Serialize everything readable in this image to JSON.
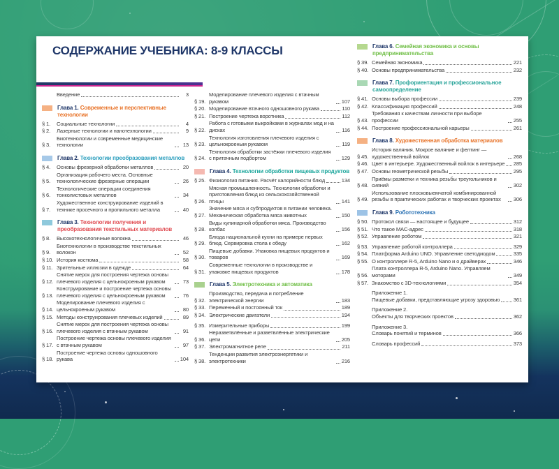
{
  "page": {
    "title": "СОДЕРЖАНИЕ УЧЕБНИКА: 8-9 КЛАССЫ"
  },
  "colors": {
    "title_navy": "#1E3668",
    "background_green": "#2F9E74",
    "background_navy": "#13305C",
    "divider_navy": "#203864",
    "divider_magenta": "#C9258F"
  },
  "columns": [
    {
      "blocks": [
        {
          "items": [
            {
              "num": "",
              "text": "Введение",
              "page": "3"
            }
          ]
        },
        {
          "chapter": {
            "label": "Глава 1.",
            "title": "Современные и перспективные технологии",
            "color": "#E8742A",
            "bullet": "#F5B183"
          },
          "items": [
            {
              "num": "§ 1.",
              "text": "Социальные технологии",
              "page": "4"
            },
            {
              "num": "§ 2.",
              "text": "Лазерные технологии и нанотехнологии",
              "page": "9"
            },
            {
              "num": "§ 3.",
              "text": "Биотехнологии и современные медицинские технологии",
              "page": "13"
            }
          ]
        },
        {
          "chapter": {
            "label": "Глава 2.",
            "title": "Технологии преобразования металлов",
            "color": "#2D9FBE",
            "bullet": "#A6C9E8"
          },
          "items": [
            {
              "num": "§ 4.",
              "text": "Основы фрезерной обработки металлов",
              "page": "20"
            },
            {
              "num": "§ 5.",
              "text": "Организация рабочего места. Основные технологические фрезерные операции",
              "page": "26"
            },
            {
              "num": "§ 6.",
              "text": "Технологические операции соединения тонколистовых металлов",
              "page": "34"
            },
            {
              "num": "§ 7.",
              "text": "Художественное конструирование изделий в технике просечного и пропильного металла",
              "page": "40"
            }
          ]
        },
        {
          "chapter": {
            "label": "Глава 3.",
            "title": "Технологии получения и преобразования текстильных материалов",
            "color": "#E04B51",
            "bullet": "#8FC9DC"
          },
          "items": [
            {
              "num": "§ 8.",
              "text": "Высокотехнологичные волокна",
              "page": "46"
            },
            {
              "num": "§ 9.",
              "text": "Биотехнологии в производстве текстильных волокон",
              "page": "52"
            },
            {
              "num": "§ 10.",
              "text": "История костюма",
              "page": "58"
            },
            {
              "num": "§ 11.",
              "text": "Зрительные иллюзии в одежде",
              "page": "64"
            },
            {
              "num": "§ 12.",
              "text": "Снятие мерок для построения чертежа основы плечевого изделия с цельнокроеным рукавом",
              "page": "73"
            },
            {
              "num": "§ 13.",
              "text": "Конструирование и построение чертежа основы плечевого изделия с цельнокроеным рукавом",
              "page": "76"
            },
            {
              "num": "§ 14.",
              "text": "Моделирование плечевого изделия с цельнокроеным рукавом",
              "page": "80"
            },
            {
              "num": "§ 15.",
              "text": "Методы конструирования плечевых изделий",
              "page": "89"
            },
            {
              "num": "§ 16.",
              "text": "Снятие мерок для построения чертежа основы плечевого изделия с втачным рукавом",
              "page": "91"
            },
            {
              "num": "§ 17.",
              "text": "Построение чертежа основы плечевого изделия с втачным рукавом",
              "page": "97"
            },
            {
              "num": "§ 18.",
              "text": "Построение чертежа основы одношовного рукава",
              "page": "104"
            }
          ]
        }
      ]
    },
    {
      "blocks": [
        {
          "items": [
            {
              "num": "§ 19.",
              "text": "Моделирование плечевого изделия с втачным рукавом",
              "page": "107"
            },
            {
              "num": "§ 20.",
              "text": "Моделирование втачного одношовного рукава",
              "page": "110"
            },
            {
              "num": "§ 21.",
              "text": "Построение чертежа воротника",
              "page": "112"
            },
            {
              "num": "§ 22.",
              "text": "Работа с готовыми выкройками в журналах мод и на дисках",
              "page": "116"
            },
            {
              "num": "§ 23.",
              "text": "Технология изготовления плечевого изделия с цельнокроеным рукавом",
              "page": "119"
            },
            {
              "num": "§ 24.",
              "text": "Технология обработки застёжки плечевого изделия с притачным подбортом",
              "page": "129"
            }
          ]
        },
        {
          "chapter": {
            "label": "Глава 4.",
            "title": "Технологии обработки пищевых продуктов",
            "color": "#1BA69C",
            "bullet": "#F5B9B1"
          },
          "items": [
            {
              "num": "§ 25.",
              "text": "Физиология питания. Расчёт калорийности блюд",
              "page": "134"
            },
            {
              "num": "§ 26.",
              "text": "Мясная промышленность. Технологии обработки и приготовления блюд из сельскохозяйственной птицы",
              "page": "141"
            },
            {
              "num": "§ 27.",
              "text": "Значение мяса и субпродуктов в питании человека. Механическая обработка мяса животных",
              "page": "150"
            },
            {
              "num": "§ 28.",
              "text": "Виды кулинарной обработки мяса. Производство колбас",
              "page": "156"
            },
            {
              "num": "§ 29.",
              "text": "Блюда национальной кухни на примере первых блюд. Сервировка стола к обеду",
              "page": "162"
            },
            {
              "num": "§ 30.",
              "text": "Пищевые добавки. Упаковка пищевых продуктов и товаров",
              "page": "169"
            },
            {
              "num": "§ 31.",
              "text": "Современные технологии в производстве и упаковке пищевых продуктов",
              "page": "178"
            }
          ]
        },
        {
          "chapter": {
            "label": "Глава 5.",
            "title": "Электротехника и автоматика",
            "color": "#6FBE45",
            "bullet": "#A9D18E"
          },
          "items": [
            {
              "num": "§ 32.",
              "text": "Производство, передача и потребление электрической энергии",
              "page": "183"
            },
            {
              "num": "§ 33.",
              "text": "Переменный и постоянный ток",
              "page": "189"
            },
            {
              "num": "§ 34.",
              "text": "Электрические двигатели",
              "page": "194"
            },
            {
              "num": "§ 35.",
              "text": "Измерительные приборы",
              "page": "199",
              "gap": true
            },
            {
              "num": "§ 36.",
              "text": "Неразветвлённые и разветвлённые электрические цепи",
              "page": "205"
            },
            {
              "num": "§ 37.",
              "text": "Электромагнитное реле",
              "page": "211"
            },
            {
              "num": "§ 38.",
              "text": "Тенденции развития электроэнергетики и электротехники",
              "page": "216"
            }
          ]
        }
      ]
    },
    {
      "blocks": [
        {
          "chapter": {
            "label": "Глава 6.",
            "title": "Семейная экономика и основы предпринимательства",
            "color": "#6FBE45",
            "bullet": "#B5D88F"
          },
          "items": [
            {
              "num": "§ 39.",
              "text": "Семейная экономика",
              "page": "221"
            },
            {
              "num": "§ 40.",
              "text": "Основы предпринимательства",
              "page": "232"
            }
          ]
        },
        {
          "chapter": {
            "label": "Глава 7.",
            "title": "Профориентация и профессиональное самоопределение",
            "color": "#2BA59B",
            "bullet": "#A9D8B4"
          },
          "items": [
            {
              "num": "§ 41.",
              "text": "Основы выбора профессии",
              "page": "239"
            },
            {
              "num": "§ 42.",
              "text": "Классификация профессий",
              "page": "248"
            },
            {
              "num": "§ 43.",
              "text": "Требования к качествам личности при выборе профессии",
              "page": "255"
            },
            {
              "num": "§ 44.",
              "text": "Построение профессиональной карьеры",
              "page": "261"
            }
          ]
        },
        {
          "chapter": {
            "label": "Глава 8.",
            "title": "Художественная обработка материалов",
            "color": "#E8742A",
            "bullet": "#F5B183"
          },
          "items": [
            {
              "num": "§ 45.",
              "text": "История валяния. Мокрое валяние и фелтинг — художественный войлок",
              "page": "268"
            },
            {
              "num": "§ 46.",
              "text": "Цвет в интерьере. Художественный войлок в интерьере",
              "page": "285"
            },
            {
              "num": "§ 47.",
              "text": "Основы геометрической резьбы",
              "page": "295"
            },
            {
              "num": "§ 48.",
              "text": "Приёмы разметки и техника резьбы треугольников и сияний",
              "page": "302"
            },
            {
              "num": "§ 49.",
              "text": "Использование плосковыемчатой комбинированной резьбы в практических работах и творческих проектах",
              "page": "306"
            }
          ]
        },
        {
          "chapter": {
            "label": "Глава 9.",
            "title": "Робототехника",
            "color": "#2E74B5",
            "bullet": "#9DC3E6"
          },
          "items": [
            {
              "num": "§ 50.",
              "text": "Протокол связи — настоящее и будущее",
              "page": "312"
            },
            {
              "num": "§ 51.",
              "text": "Что такое MAC-адрес",
              "page": "318"
            },
            {
              "num": "§ 52.",
              "text": "Управление роботом",
              "page": "321"
            },
            {
              "num": "§ 53.",
              "text": "Управление работой контроллера",
              "page": "329",
              "gap": true
            },
            {
              "num": "§ 54.",
              "text": "Платформа Arduino UNO. Управление светодиодом",
              "page": "335"
            },
            {
              "num": "§ 55.",
              "text": "О контроллере R-5, Arduino Nano и о драйверах",
              "page": "346"
            },
            {
              "num": "§ 56.",
              "text": "Плата контроллера R-5, Arduino Nano. Управляем моторами",
              "page": "349"
            },
            {
              "num": "§ 57.",
              "text": "Знакомство с 3D-технологиями",
              "page": "354"
            }
          ]
        },
        {
          "items": [
            {
              "subhead": "Приложение 1.",
              "gap": true
            },
            {
              "num": "",
              "text": "Пищевые добавки, представляющие угрозу здоровью",
              "page": "361"
            },
            {
              "subhead": "Приложение 2.",
              "gap": true
            },
            {
              "num": "",
              "text": "Объекты для творческих проектов",
              "page": "362"
            },
            {
              "subhead": "Приложение 3.",
              "gap": true
            },
            {
              "num": "",
              "text": "Словарь понятий и терминов",
              "page": "366"
            },
            {
              "num": "",
              "text": "Словарь профессий",
              "page": "373",
              "gap": true
            }
          ]
        }
      ]
    }
  ]
}
